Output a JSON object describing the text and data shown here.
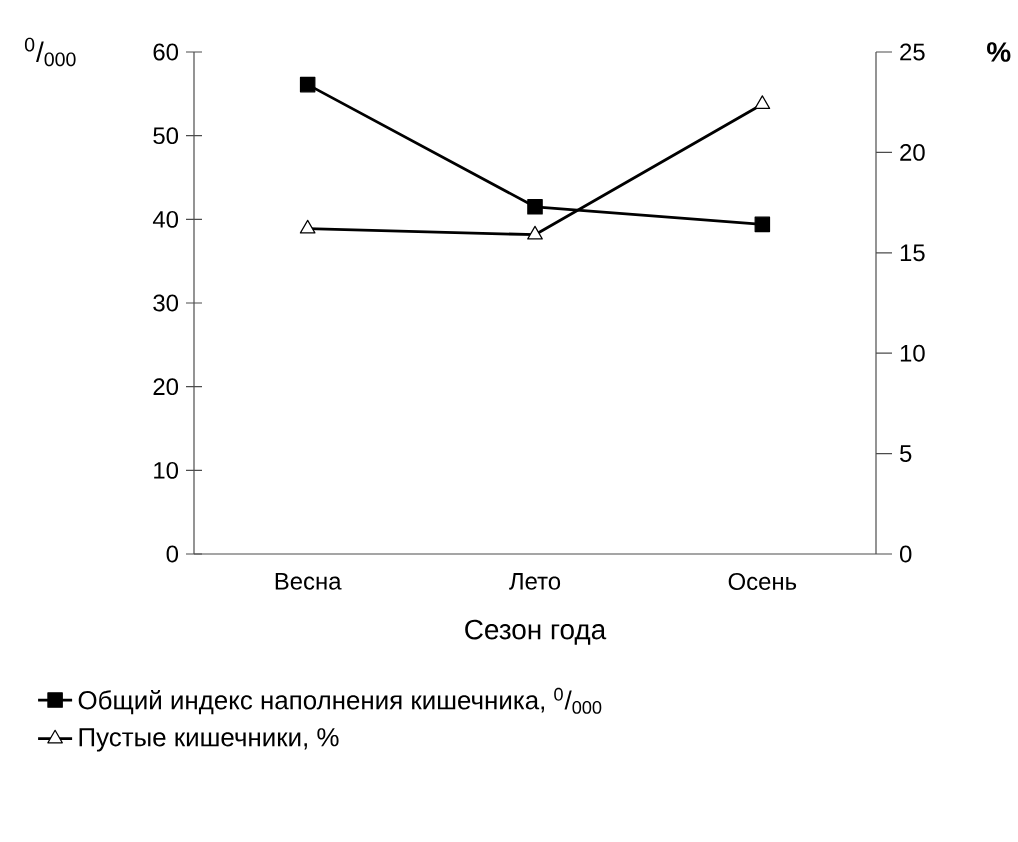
{
  "chart_data": {
    "type": "line",
    "xlabel": "Сезон года",
    "ylabel": "$^{0}$/$_{000}$",
    "y2label": "%",
    "categories": [
      "Весна",
      "Лето",
      "Осень"
    ],
    "ylim": [
      0,
      60
    ],
    "yticks": [
      0,
      10,
      20,
      30,
      40,
      50,
      60
    ],
    "y2lim": [
      0,
      25
    ],
    "y2ticks": [
      0,
      5,
      10,
      15,
      20,
      25
    ],
    "legend": "bottom",
    "grid": false,
    "line_style": "solid",
    "series": [
      {
        "name": "Общий индекс наполнения кишечника, $^{0}$/$_{000}$",
        "color": "#000000",
        "marker": "square",
        "values": [
          56.1,
          41.5,
          39.4
        ]
      },
      {
        "name": "Пустые кишечники, %",
        "color": "#000000",
        "marker": "triangle",
        "axis": "y2",
        "values": [
          16.2,
          15.9,
          22.4
        ]
      }
    ]
  }
}
